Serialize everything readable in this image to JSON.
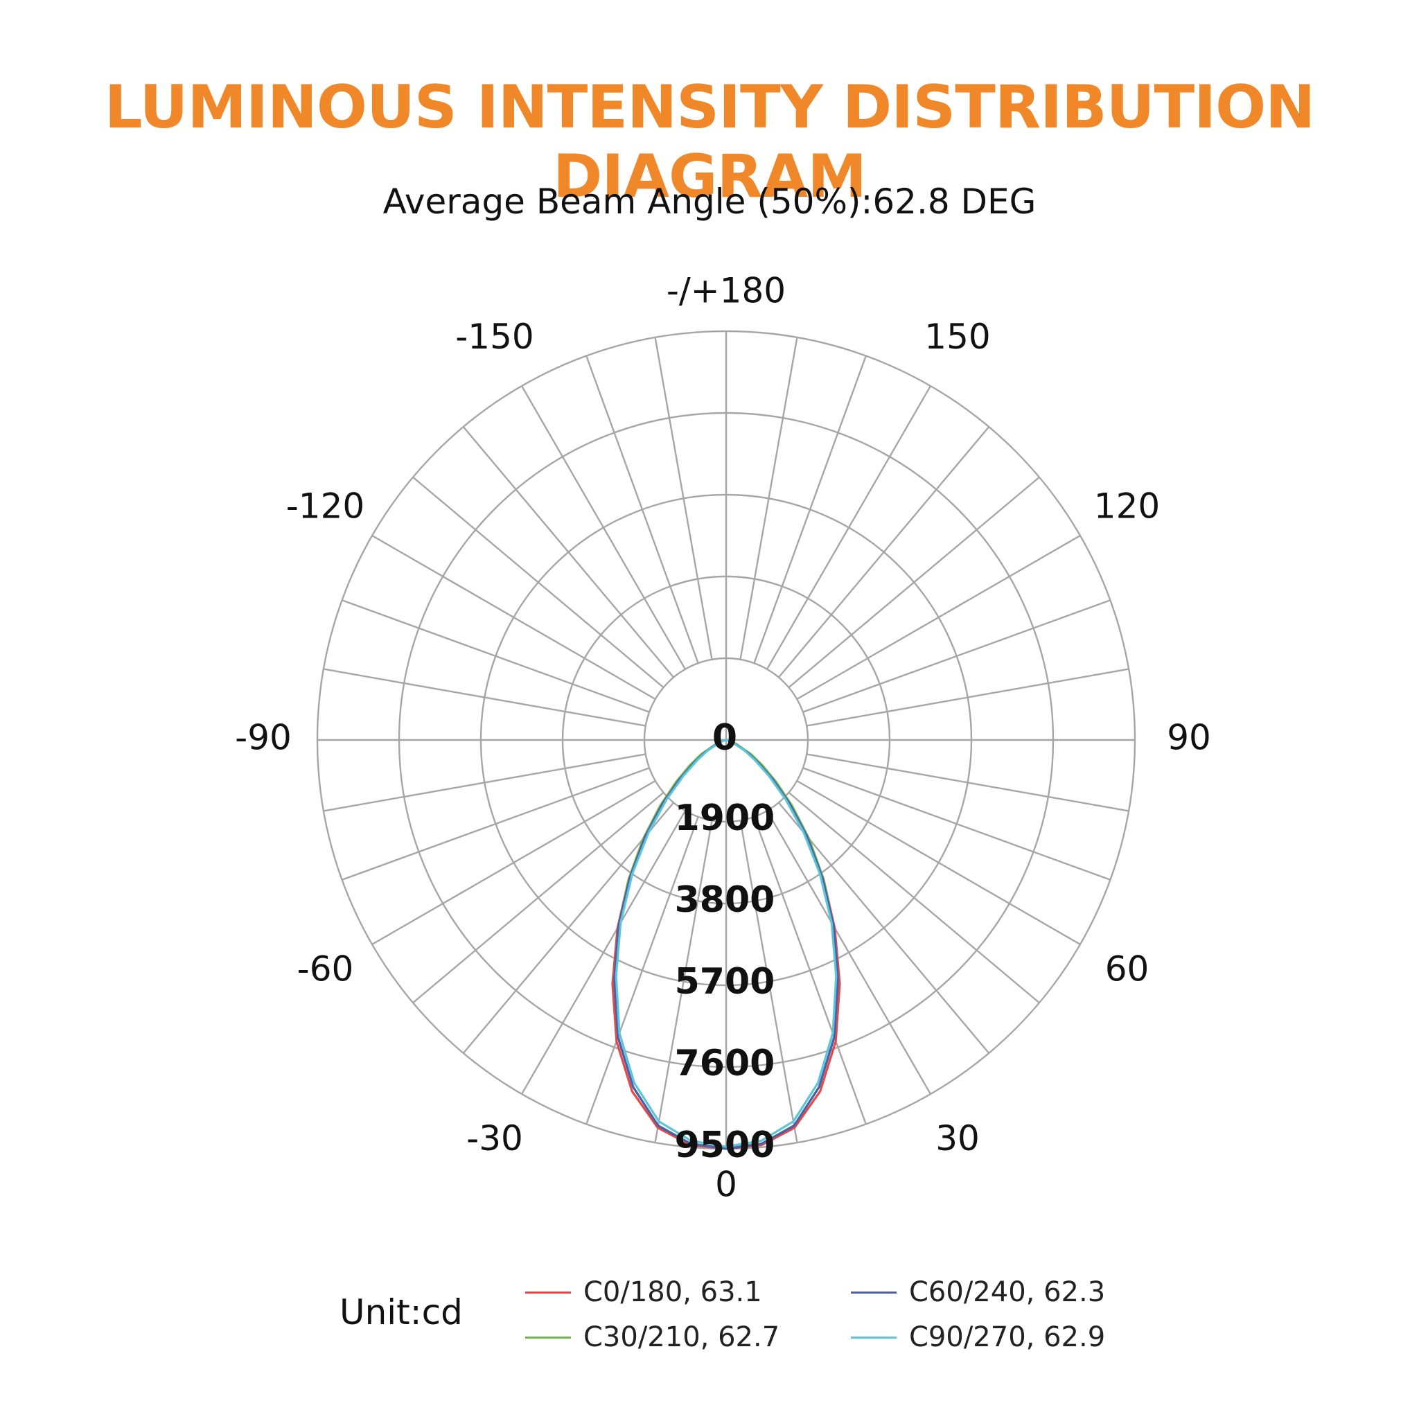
{
  "title": "LUMINOUS INTENSITY DISTRIBUTION DIAGRAM",
  "title_color": "#f0882a",
  "subtitle": "Average Beam Angle (50%):62.8 DEG",
  "unit_label": "Unit:cd",
  "chart_data": {
    "type": "polar",
    "angular_labels": [
      {
        "angle": 180,
        "text": "-/+180"
      },
      {
        "angle": 150,
        "text": "150"
      },
      {
        "angle": -150,
        "text": "-150"
      },
      {
        "angle": 120,
        "text": "120"
      },
      {
        "angle": -120,
        "text": "-120"
      },
      {
        "angle": 90,
        "text": "90"
      },
      {
        "angle": -90,
        "text": "-90"
      },
      {
        "angle": 60,
        "text": "60"
      },
      {
        "angle": -60,
        "text": "-60"
      },
      {
        "angle": 30,
        "text": "30"
      },
      {
        "angle": -30,
        "text": "-30"
      },
      {
        "angle": 0,
        "text": "0"
      }
    ],
    "radial_ticks": [
      0,
      1900,
      3800,
      5700,
      7600,
      9500
    ],
    "rmax": 9500,
    "angle_grid_step": 10,
    "grid": true,
    "series": [
      {
        "name": "C0/180, 63.1",
        "color": "#e8474a",
        "angles": [
          -90,
          -80,
          -70,
          -60,
          -55,
          -50,
          -45,
          -40,
          -35,
          -30,
          -25,
          -20,
          -15,
          -10,
          -5,
          0,
          5,
          10,
          15,
          20,
          25,
          30,
          35,
          40,
          45,
          50,
          55,
          60,
          70,
          80,
          90
        ],
        "values": [
          0,
          60,
          200,
          620,
          980,
          1480,
          2150,
          2980,
          3950,
          5050,
          6250,
          7450,
          8450,
          9150,
          9450,
          9500,
          9450,
          9150,
          8450,
          7450,
          6250,
          5050,
          3950,
          2980,
          2150,
          1480,
          980,
          620,
          200,
          60,
          0
        ]
      },
      {
        "name": "C30/210, 62.7",
        "color": "#72b94a",
        "angles": [
          -90,
          -80,
          -70,
          -60,
          -55,
          -50,
          -45,
          -40,
          -35,
          -30,
          -25,
          -20,
          -15,
          -10,
          -5,
          0,
          5,
          10,
          15,
          20,
          25,
          30,
          35,
          40,
          45,
          50,
          55,
          60,
          70,
          80,
          90
        ],
        "values": [
          0,
          70,
          230,
          680,
          1030,
          1520,
          2180,
          3000,
          3950,
          5000,
          6150,
          7350,
          8350,
          9100,
          9420,
          9480,
          9420,
          9100,
          8350,
          7350,
          6150,
          5000,
          3950,
          3000,
          2180,
          1520,
          1030,
          680,
          230,
          70,
          0
        ]
      },
      {
        "name": "C60/240, 62.3",
        "color": "#4b5fa8",
        "angles": [
          -90,
          -80,
          -70,
          -60,
          -55,
          -50,
          -45,
          -40,
          -35,
          -30,
          -25,
          -20,
          -15,
          -10,
          -5,
          0,
          5,
          10,
          15,
          20,
          25,
          30,
          35,
          40,
          45,
          50,
          55,
          60,
          70,
          80,
          90
        ],
        "values": [
          0,
          50,
          180,
          560,
          900,
          1400,
          2080,
          2920,
          3900,
          5000,
          6150,
          7350,
          8350,
          9100,
          9420,
          9500,
          9420,
          9100,
          8350,
          7350,
          6150,
          5000,
          3900,
          2920,
          2080,
          1400,
          900,
          560,
          180,
          50,
          0
        ]
      },
      {
        "name": "C90/270, 62.9",
        "color": "#5cc6d8",
        "angles": [
          -90,
          -80,
          -70,
          -60,
          -55,
          -50,
          -45,
          -40,
          -35,
          -30,
          -25,
          -20,
          -15,
          -10,
          -5,
          0,
          5,
          10,
          15,
          20,
          25,
          30,
          35,
          40,
          45,
          50,
          55,
          60,
          70,
          80,
          90
        ],
        "values": [
          0,
          40,
          150,
          500,
          820,
          1300,
          1960,
          2800,
          3800,
          4900,
          6050,
          7250,
          8250,
          9000,
          9350,
          9450,
          9350,
          9000,
          8250,
          7250,
          6050,
          4900,
          3800,
          2800,
          1960,
          1300,
          820,
          500,
          150,
          40,
          0
        ]
      }
    ]
  }
}
